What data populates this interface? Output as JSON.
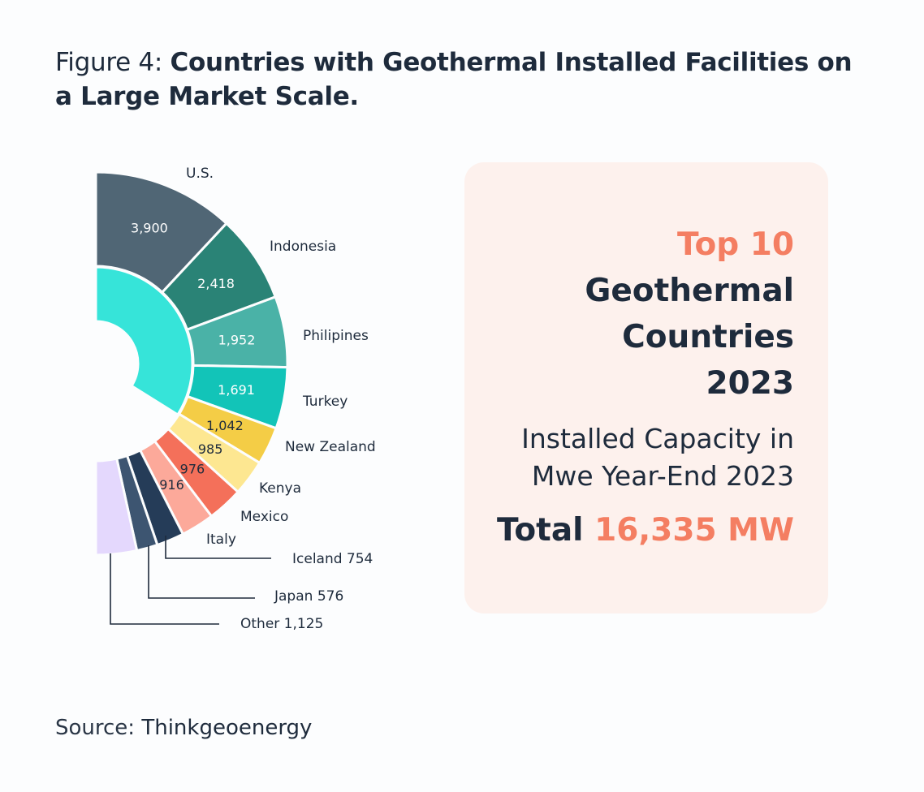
{
  "title": {
    "lead": "Figure 4:",
    "main": "Countries with Geothermal Installed Facilities on a Large Market Scale."
  },
  "chart_data": {
    "type": "pie",
    "variant": "half-donut",
    "unit": "MWe",
    "categories": [
      "U.S.",
      "Indonesia",
      "Philipines",
      "Turkey",
      "New Zealand",
      "Kenya",
      "Mexico",
      "Italy",
      "Iceland",
      "Japan",
      "Other"
    ],
    "values": [
      3900,
      2418,
      1952,
      1691,
      1042,
      985,
      976,
      916,
      754,
      576,
      1125
    ],
    "value_labels": [
      "3,900",
      "2,418",
      "1,952",
      "1,691",
      "1,042",
      "985",
      "976",
      "916",
      "754",
      "576",
      "1,125"
    ],
    "colors": [
      "#506675",
      "#2a8376",
      "#4ab2a7",
      "#12c4b8",
      "#f4cd46",
      "#fde791",
      "#f4705a",
      "#fca99a",
      "#253c58",
      "#3d5571",
      "#e4d8fd"
    ],
    "callout_labels": [
      "Iceland 754",
      "Japan 576",
      "Other 1,125"
    ],
    "inner_ring": {
      "color": "#36e4d9"
    }
  },
  "panel": {
    "top10": "Top 10",
    "headline": [
      "Geothermal",
      "Countries",
      "2023"
    ],
    "subhead": [
      "Installed Capacity in",
      "Mwe Year-End 2023"
    ],
    "total_prefix": "Total",
    "total_value": "16,335 MW"
  },
  "source": {
    "prefix": "Source:",
    "name": "Thinkgeoenergy"
  }
}
